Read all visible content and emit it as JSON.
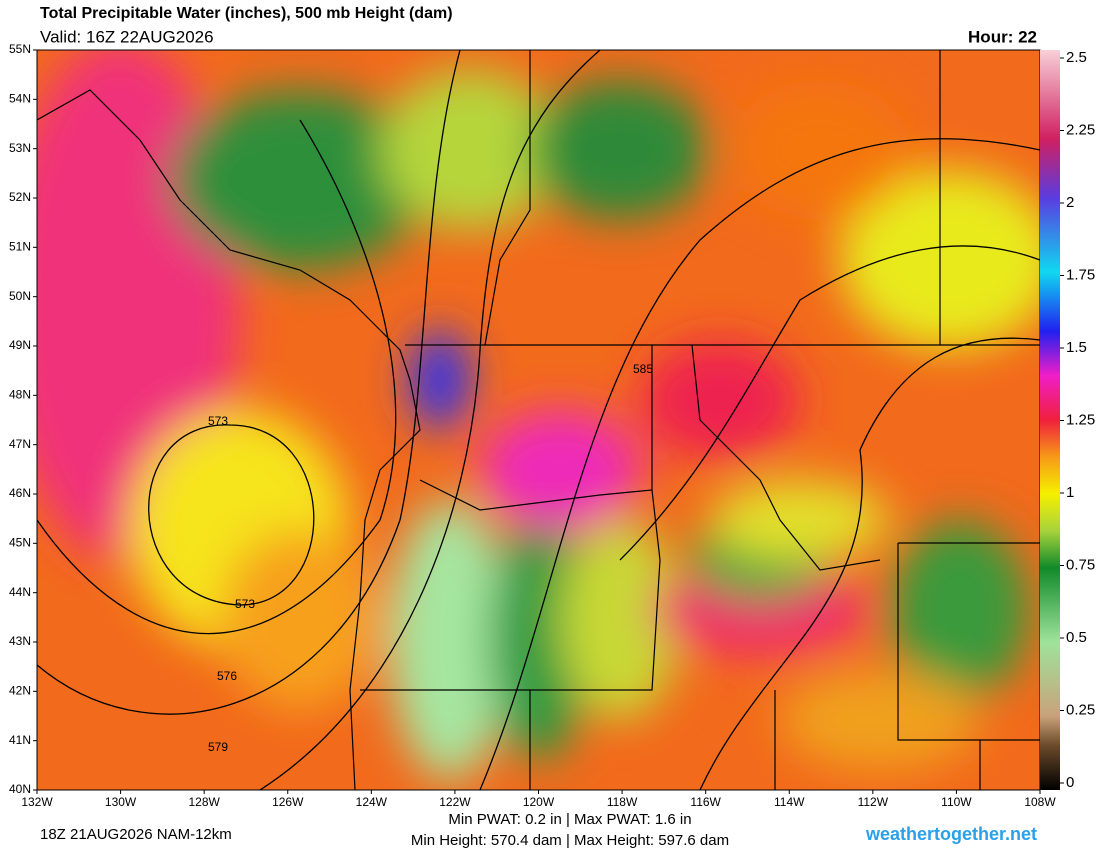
{
  "header": {
    "title": "Total Precipitable Water (inches), 500 mb Height (dam)",
    "valid": "Valid: 16Z 22AUG2026",
    "hour": "Hour: 22"
  },
  "map": {
    "lat_labels": [
      "55N",
      "54N",
      "53N",
      "52N",
      "51N",
      "50N",
      "49N",
      "48N",
      "47N",
      "46N",
      "45N",
      "44N",
      "43N",
      "42N",
      "41N",
      "40N"
    ],
    "lon_labels": [
      "132W",
      "130W",
      "128W",
      "126W",
      "124W",
      "122W",
      "120W",
      "118W",
      "116W",
      "114W",
      "112W",
      "110W",
      "108W"
    ],
    "contour_labels": [
      "585",
      "573",
      "573",
      "576",
      "579"
    ]
  },
  "colorbar": {
    "ticks": [
      2.5,
      2.25,
      2,
      1.75,
      1.5,
      1.25,
      1,
      0.75,
      0.5,
      0.25,
      0
    ]
  },
  "footer": {
    "run": "18Z 21AUG2026 NAM-12km",
    "stats_line1": "Min PWAT:   0.2 in | Max PWAT:   1.6 in",
    "stats_line2": "Min Height: 570.4 dam | Max Height: 597.6 dam",
    "site": "weathertogether.net"
  }
}
